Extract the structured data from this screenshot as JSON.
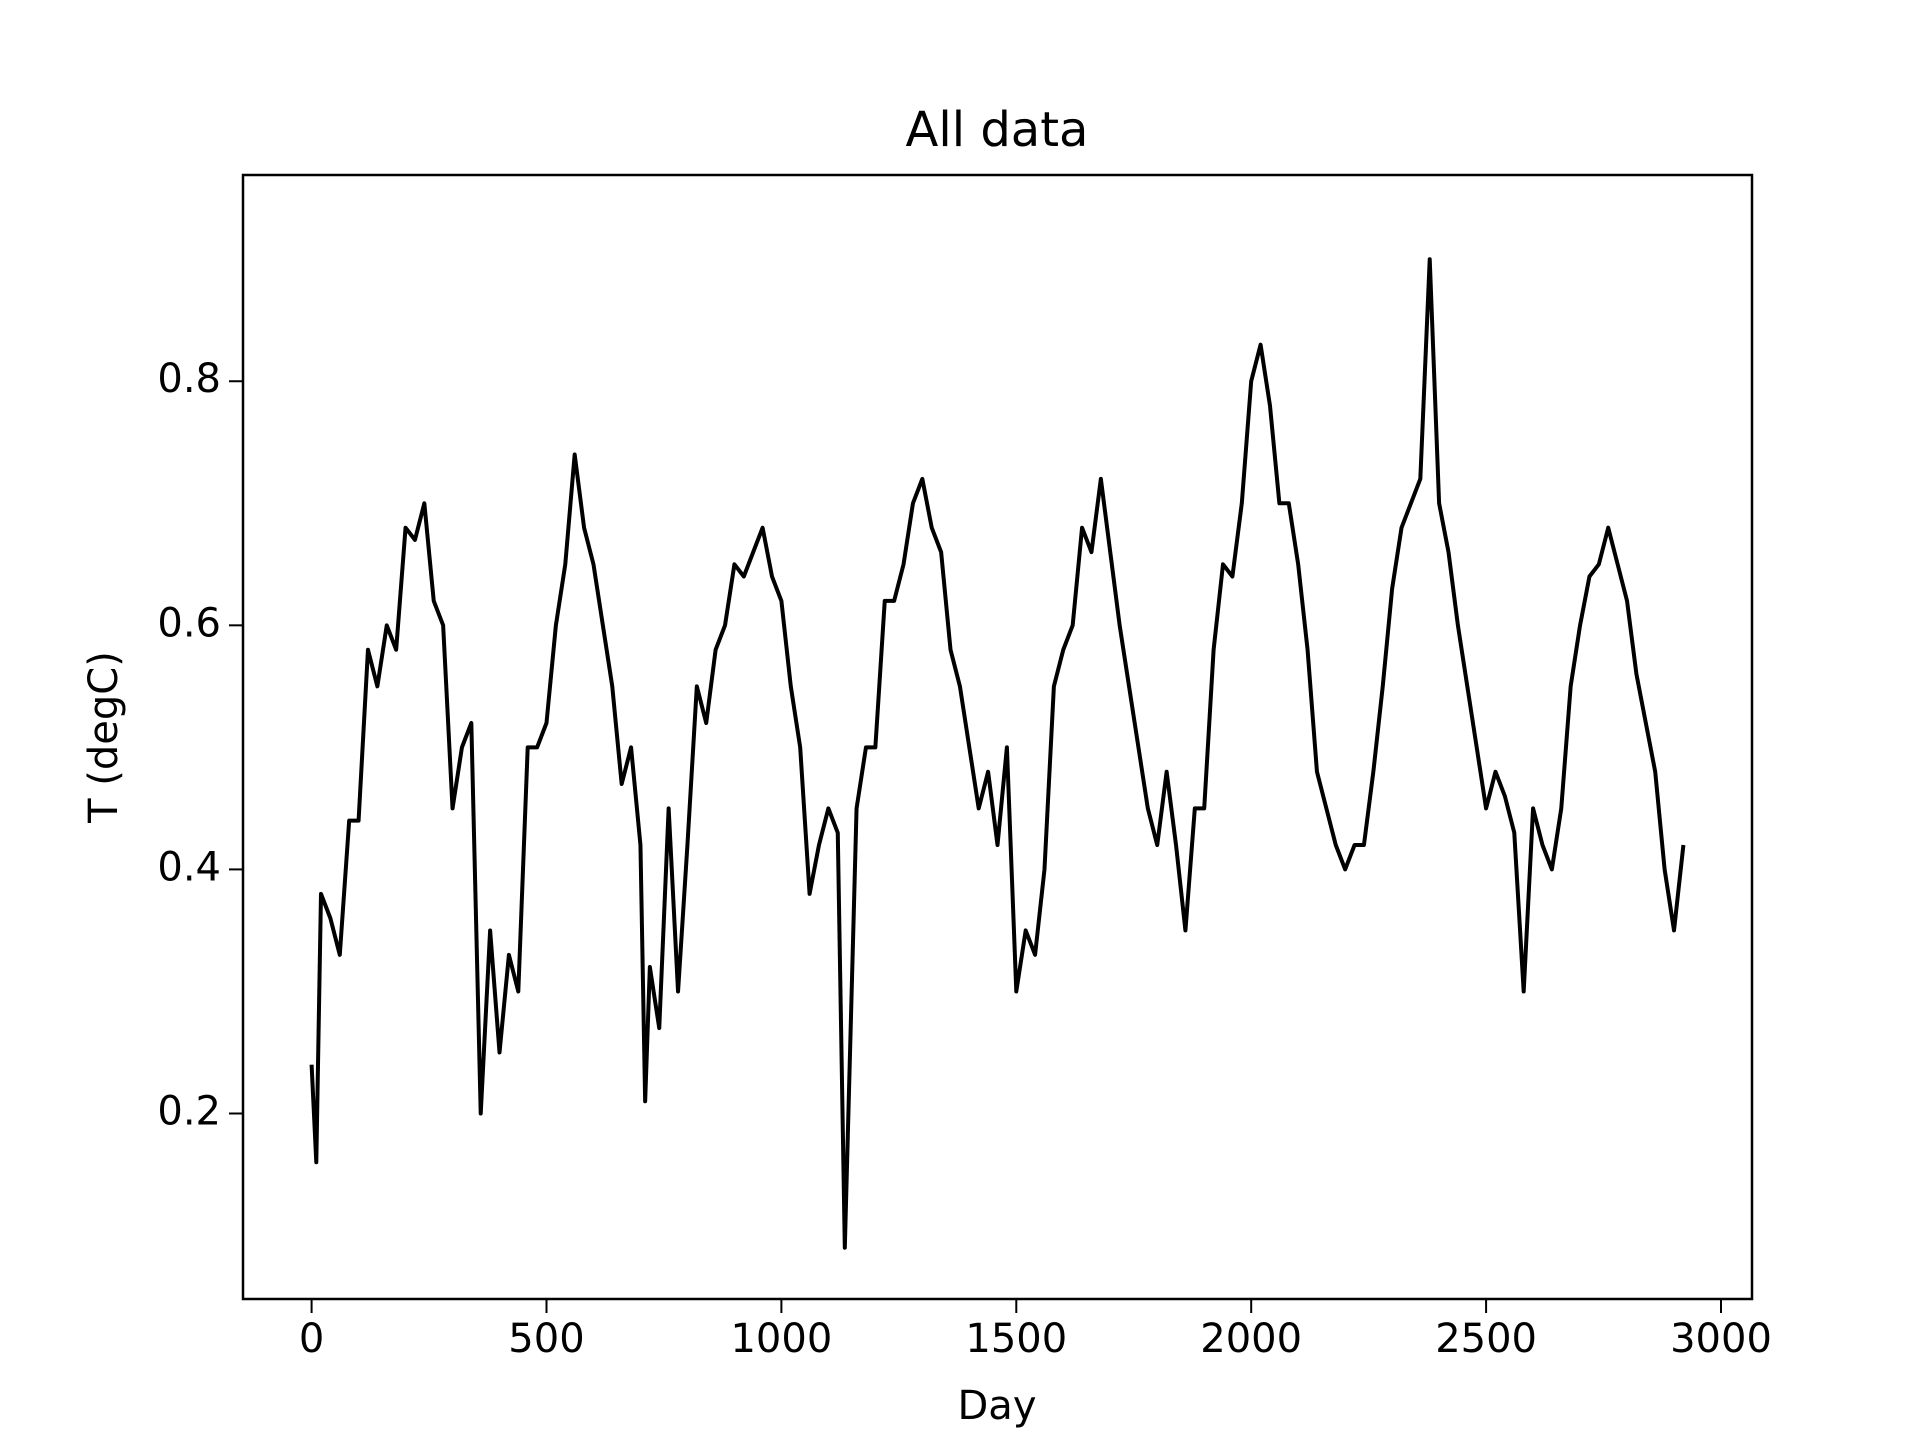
{
  "chart_data": {
    "type": "line",
    "title": "All data",
    "xlabel": "Day",
    "ylabel": "T (degC)",
    "x": [
      0,
      10,
      20,
      40,
      60,
      80,
      100,
      120,
      140,
      160,
      180,
      200,
      220,
      240,
      260,
      280,
      300,
      320,
      340,
      360,
      380,
      400,
      420,
      440,
      460,
      480,
      500,
      520,
      540,
      560,
      580,
      600,
      620,
      640,
      660,
      680,
      700,
      710,
      720,
      740,
      760,
      780,
      800,
      820,
      840,
      860,
      880,
      900,
      920,
      940,
      960,
      980,
      1000,
      1020,
      1040,
      1060,
      1080,
      1100,
      1120,
      1135,
      1160,
      1180,
      1200,
      1220,
      1240,
      1260,
      1280,
      1300,
      1320,
      1340,
      1360,
      1380,
      1400,
      1420,
      1440,
      1460,
      1480,
      1500,
      1520,
      1540,
      1560,
      1580,
      1600,
      1620,
      1640,
      1660,
      1680,
      1700,
      1720,
      1740,
      1760,
      1780,
      1800,
      1820,
      1840,
      1860,
      1880,
      1900,
      1920,
      1940,
      1960,
      1980,
      2000,
      2020,
      2040,
      2060,
      2080,
      2100,
      2120,
      2140,
      2160,
      2180,
      2200,
      2220,
      2240,
      2260,
      2280,
      2300,
      2320,
      2340,
      2360,
      2380,
      2400,
      2420,
      2440,
      2460,
      2480,
      2500,
      2520,
      2540,
      2560,
      2580,
      2600,
      2620,
      2640,
      2660,
      2680,
      2700,
      2720,
      2740,
      2760,
      2780,
      2800,
      2820,
      2840,
      2860,
      2880,
      2900,
      2920
    ],
    "series": [
      {
        "name": "T",
        "color": "#000000",
        "values": [
          0.24,
          0.16,
          0.38,
          0.36,
          0.33,
          0.44,
          0.44,
          0.58,
          0.55,
          0.6,
          0.58,
          0.68,
          0.67,
          0.7,
          0.62,
          0.6,
          0.45,
          0.5,
          0.52,
          0.2,
          0.35,
          0.25,
          0.33,
          0.3,
          0.5,
          0.5,
          0.52,
          0.6,
          0.65,
          0.74,
          0.68,
          0.65,
          0.6,
          0.55,
          0.47,
          0.5,
          0.42,
          0.21,
          0.32,
          0.27,
          0.45,
          0.3,
          0.42,
          0.55,
          0.52,
          0.58,
          0.6,
          0.65,
          0.64,
          0.66,
          0.68,
          0.64,
          0.62,
          0.55,
          0.5,
          0.38,
          0.42,
          0.45,
          0.43,
          0.09,
          0.45,
          0.5,
          0.5,
          0.62,
          0.62,
          0.65,
          0.7,
          0.72,
          0.68,
          0.66,
          0.58,
          0.55,
          0.5,
          0.45,
          0.48,
          0.42,
          0.5,
          0.3,
          0.35,
          0.33,
          0.4,
          0.55,
          0.58,
          0.6,
          0.68,
          0.66,
          0.72,
          0.66,
          0.6,
          0.55,
          0.5,
          0.45,
          0.42,
          0.48,
          0.42,
          0.35,
          0.45,
          0.45,
          0.58,
          0.65,
          0.64,
          0.7,
          0.8,
          0.83,
          0.78,
          0.7,
          0.7,
          0.65,
          0.58,
          0.48,
          0.45,
          0.42,
          0.4,
          0.42,
          0.42,
          0.48,
          0.55,
          0.63,
          0.68,
          0.7,
          0.72,
          0.9,
          0.7,
          0.66,
          0.6,
          0.55,
          0.5,
          0.45,
          0.48,
          0.46,
          0.43,
          0.3,
          0.45,
          0.42,
          0.4,
          0.45,
          0.55,
          0.6,
          0.64,
          0.65,
          0.68,
          0.65,
          0.62,
          0.56,
          0.52,
          0.48,
          0.4,
          0.35,
          0.42
        ]
      }
    ],
    "xlim": [
      -146,
      3066
    ],
    "xticks": [
      0,
      500,
      1000,
      1500,
      2000,
      2500,
      3000
    ],
    "ylim": [
      0.048,
      0.969
    ],
    "yticks": [
      0.2,
      0.4,
      0.6,
      0.8
    ],
    "grid": false
  }
}
